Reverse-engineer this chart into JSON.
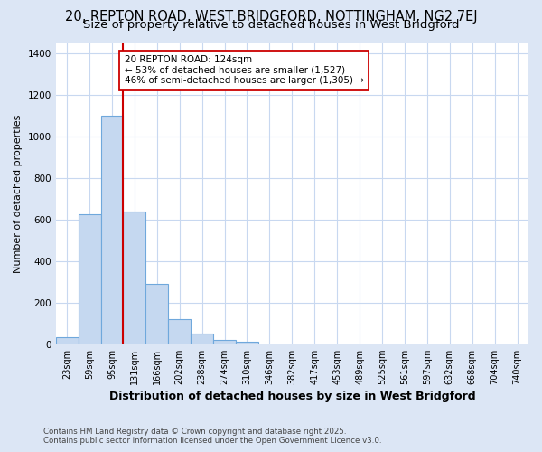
{
  "title_line1": "20, REPTON ROAD, WEST BRIDGFORD, NOTTINGHAM, NG2 7EJ",
  "title_line2": "Size of property relative to detached houses in West Bridgford",
  "xlabel": "Distribution of detached houses by size in West Bridgford",
  "ylabel": "Number of detached properties",
  "footnote": "Contains HM Land Registry data © Crown copyright and database right 2025.\nContains public sector information licensed under the Open Government Licence v3.0.",
  "bin_labels": [
    "23sqm",
    "59sqm",
    "95sqm",
    "131sqm",
    "166sqm",
    "202sqm",
    "238sqm",
    "274sqm",
    "310sqm",
    "346sqm",
    "382sqm",
    "417sqm",
    "453sqm",
    "489sqm",
    "525sqm",
    "561sqm",
    "597sqm",
    "632sqm",
    "668sqm",
    "704sqm",
    "740sqm"
  ],
  "bar_heights": [
    35,
    625,
    1100,
    640,
    290,
    120,
    50,
    20,
    10,
    0,
    0,
    0,
    0,
    0,
    0,
    0,
    0,
    0,
    0,
    0,
    0
  ],
  "bar_color": "#c5d8f0",
  "bar_edge_color": "#6fa8dc",
  "annotation_text": "20 REPTON ROAD: 124sqm\n← 53% of detached houses are smaller (1,527)\n46% of semi-detached houses are larger (1,305) →",
  "annotation_box_color": "#ffffff",
  "annotation_box_edge": "#cc0000",
  "red_line_color": "#cc0000",
  "red_line_bin": 3,
  "ylim": [
    0,
    1450
  ],
  "yticks": [
    0,
    200,
    400,
    600,
    800,
    1000,
    1200,
    1400
  ],
  "bg_color": "#dce6f5",
  "plot_bg_color": "#ffffff",
  "grid_color": "#c8d8f0",
  "title_fontsize": 10.5,
  "subtitle_fontsize": 9.5,
  "xlabel_fontsize": 9,
  "ylabel_fontsize": 8,
  "tick_fontsize": 7,
  "annot_fontsize": 7.5
}
